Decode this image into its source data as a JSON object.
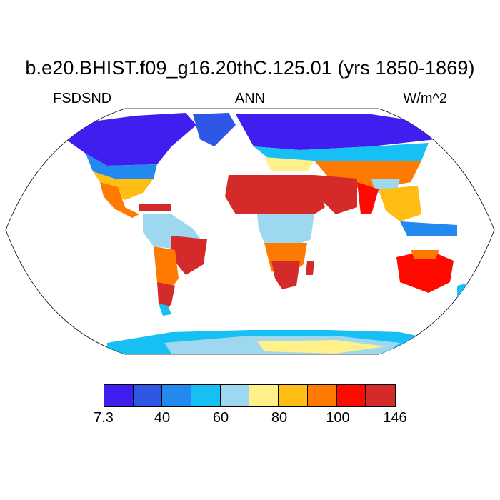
{
  "title": "b.e20.BHIST.f09_g16.20thC.125.01 (yrs 1850-1869)",
  "variable": "FSDSND",
  "season": "ANN",
  "units": "W/m^2",
  "colorbar": {
    "colors": [
      "#3f1ff0",
      "#2e57e6",
      "#2289ee",
      "#16c0f5",
      "#9ed7f0",
      "#fff08a",
      "#ffbe14",
      "#ff7a00",
      "#ff0a00",
      "#d42a2a"
    ],
    "tick_labels": [
      "7.3",
      "40",
      "60",
      "80",
      "100",
      "146"
    ]
  },
  "map": {
    "projection": "robinson-like",
    "ocean": "#ffffff",
    "outline": "#000000"
  }
}
